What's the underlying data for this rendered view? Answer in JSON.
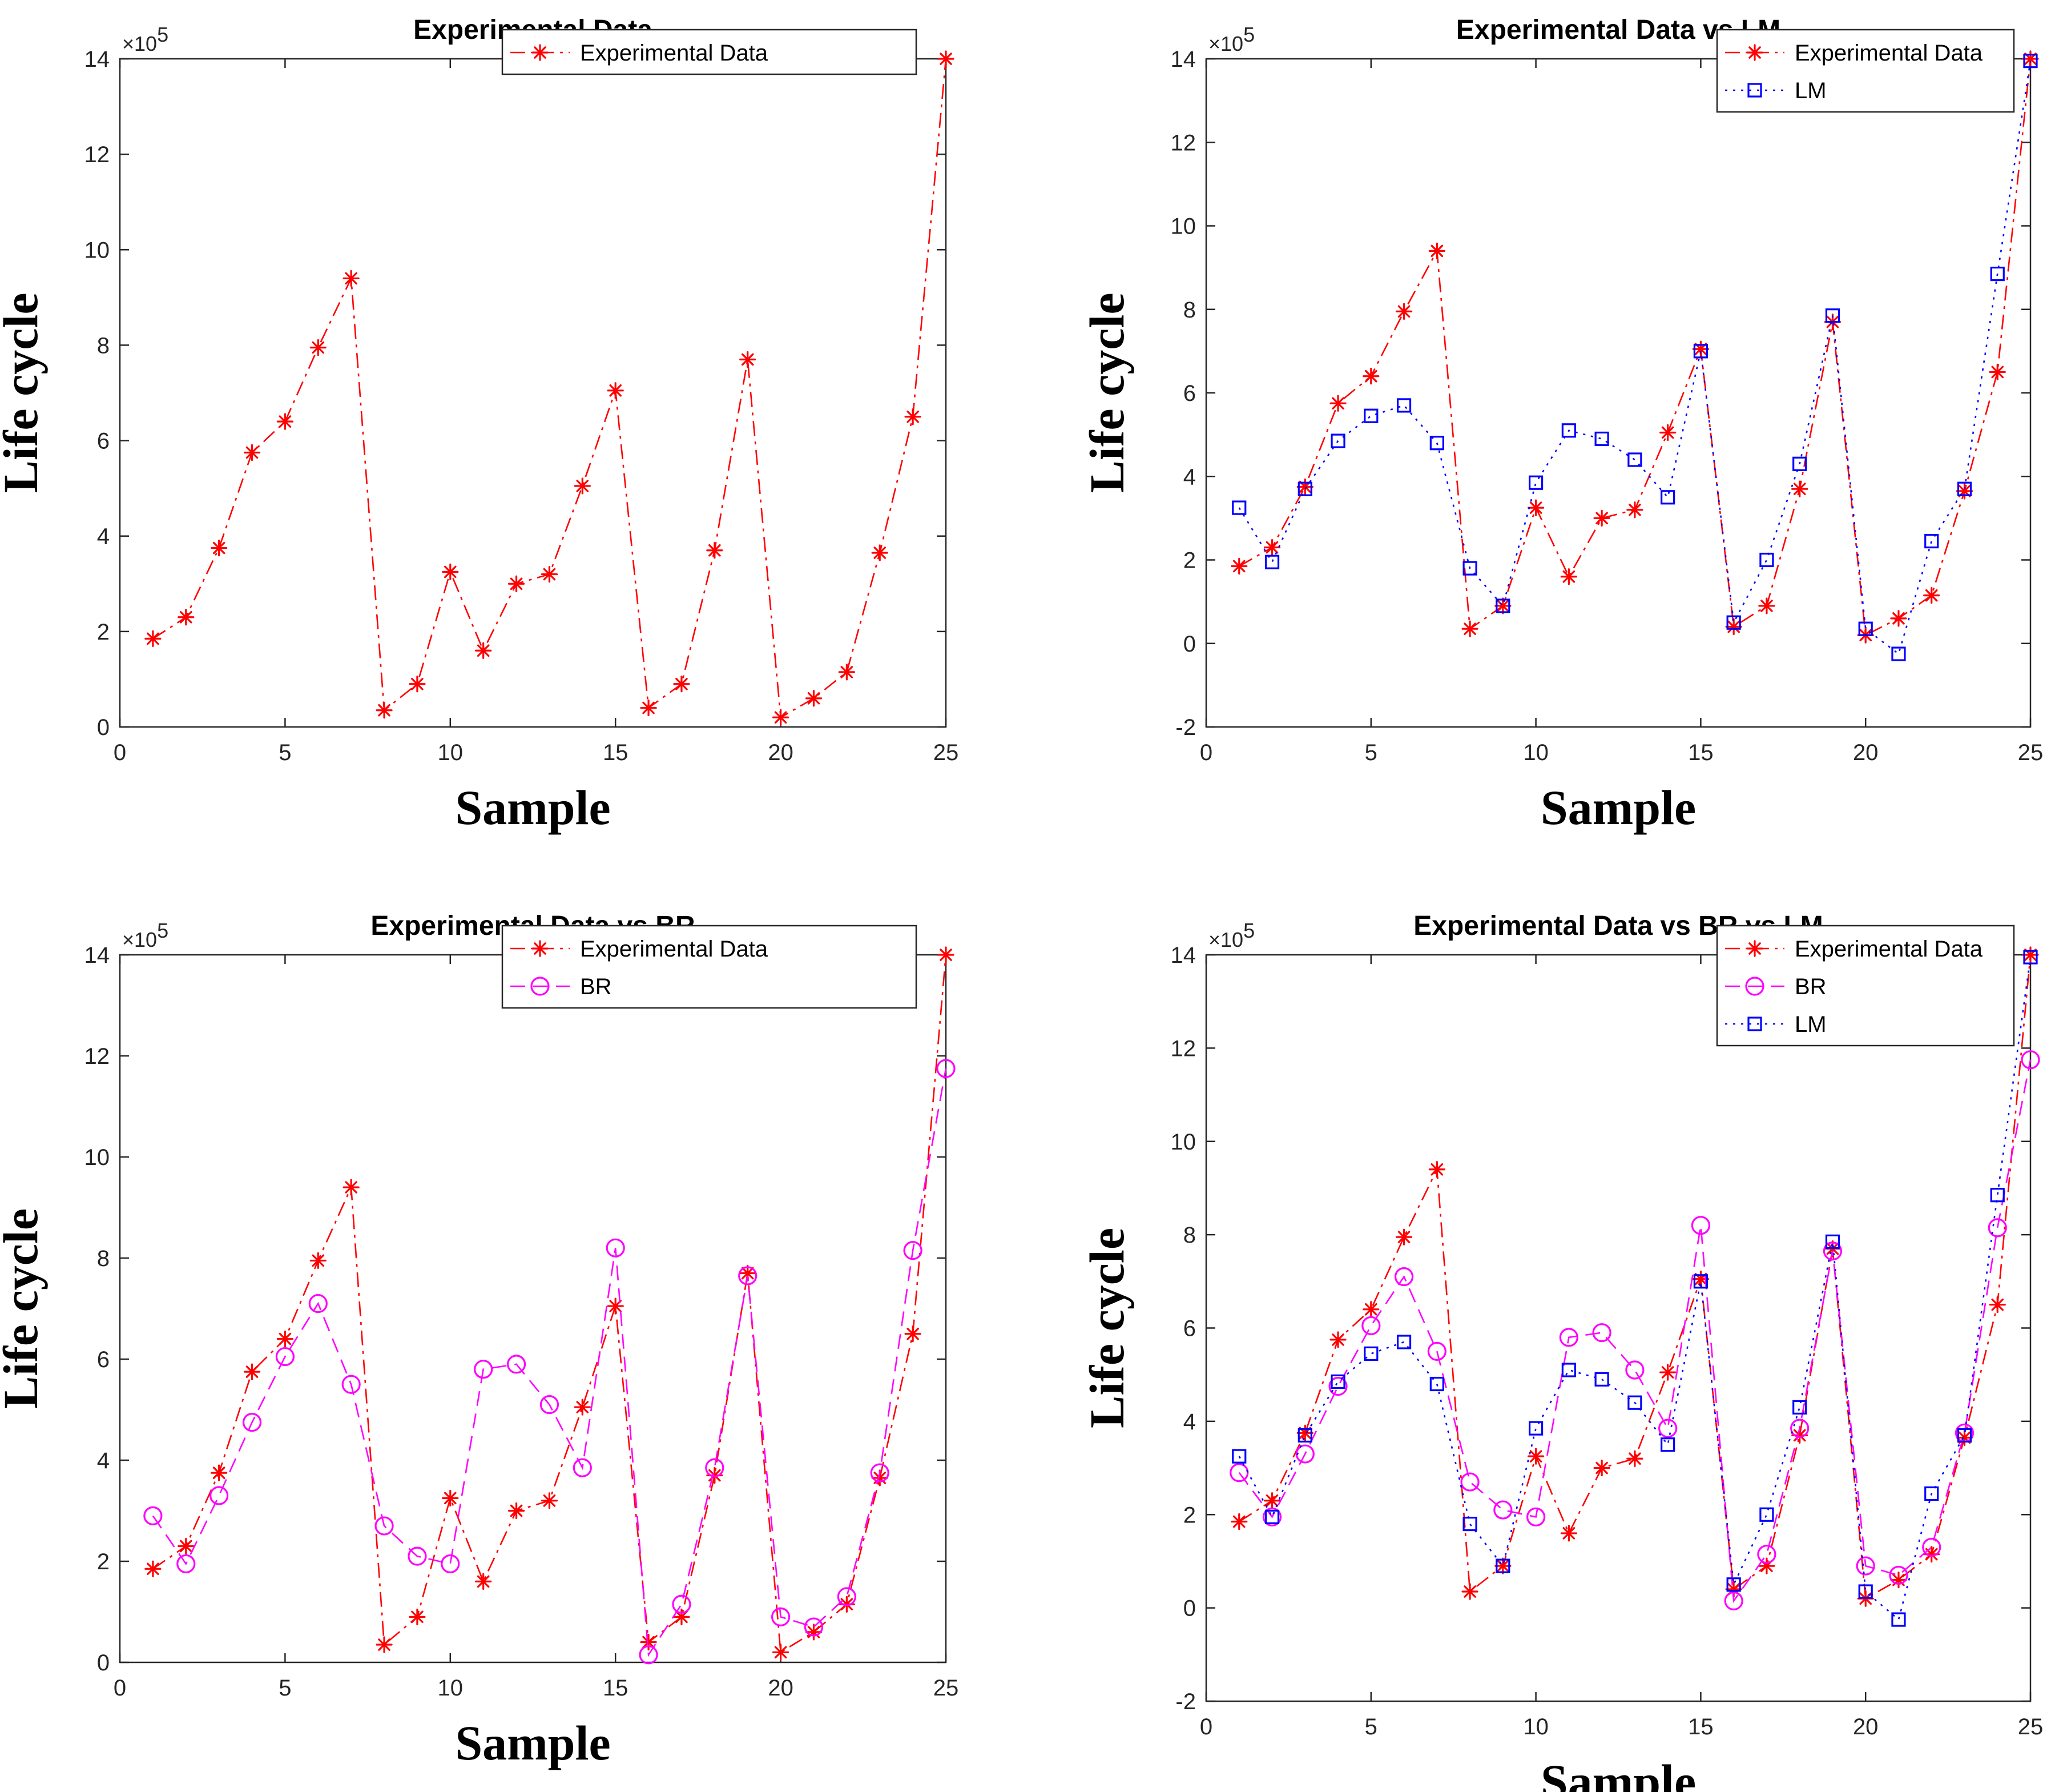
{
  "chart_data": [
    {
      "type": "line",
      "title": "Experimental Data",
      "xlabel": "Sample",
      "ylabel": "Life cycle",
      "y_exponent": "5",
      "y_exponent_base": "×10",
      "xlim": [
        0,
        25
      ],
      "ylim": [
        0,
        14
      ],
      "xticks": [
        0,
        5,
        10,
        15,
        20,
        25
      ],
      "yticks": [
        0,
        2,
        4,
        6,
        8,
        10,
        12,
        14
      ],
      "x": [
        1,
        2,
        3,
        4,
        5,
        6,
        7,
        8,
        9,
        10,
        11,
        12,
        13,
        14,
        15,
        16,
        17,
        18,
        19,
        20,
        21,
        22,
        23,
        24,
        25
      ],
      "series": [
        {
          "name": "Experimental Data",
          "color": "#ff0000",
          "marker": "asterisk",
          "dash": "dashdot",
          "values": [
            1.85,
            2.3,
            3.75,
            5.75,
            6.4,
            7.95,
            9.4,
            0.35,
            0.9,
            3.25,
            1.6,
            3.0,
            3.2,
            5.05,
            7.05,
            0.4,
            0.9,
            3.7,
            7.7,
            0.2,
            0.6,
            1.15,
            3.65,
            6.5,
            14.0
          ]
        }
      ]
    },
    {
      "type": "line",
      "title": "Experimental Data vs LM",
      "xlabel": "Sample",
      "ylabel": "Life cycle",
      "y_exponent": "5",
      "y_exponent_base": "×10",
      "xlim": [
        0,
        25
      ],
      "ylim": [
        -2,
        14
      ],
      "xticks": [
        0,
        5,
        10,
        15,
        20,
        25
      ],
      "yticks": [
        -2,
        0,
        2,
        4,
        6,
        8,
        10,
        12,
        14
      ],
      "x": [
        1,
        2,
        3,
        4,
        5,
        6,
        7,
        8,
        9,
        10,
        11,
        12,
        13,
        14,
        15,
        16,
        17,
        18,
        19,
        20,
        21,
        22,
        23,
        24,
        25
      ],
      "series": [
        {
          "name": "Experimental Data",
          "color": "#ff0000",
          "marker": "asterisk",
          "dash": "dashdot",
          "values": [
            1.85,
            2.3,
            3.75,
            5.75,
            6.4,
            7.95,
            9.4,
            0.35,
            0.9,
            3.25,
            1.6,
            3.0,
            3.2,
            5.05,
            7.05,
            0.4,
            0.9,
            3.7,
            7.7,
            0.2,
            0.6,
            1.15,
            3.65,
            6.5,
            14.0
          ]
        },
        {
          "name": "LM",
          "color": "#0000ff",
          "marker": "square",
          "dash": "dotted",
          "values": [
            3.25,
            1.95,
            3.7,
            4.85,
            5.45,
            5.7,
            4.8,
            1.8,
            0.9,
            3.85,
            5.1,
            4.9,
            4.4,
            3.5,
            7.0,
            0.5,
            2.0,
            4.3,
            7.85,
            0.35,
            -0.25,
            2.45,
            3.7,
            8.85,
            13.95
          ]
        }
      ]
    },
    {
      "type": "line",
      "title": "Experimental Data vs BR",
      "xlabel": "Sample",
      "ylabel": "Life cycle",
      "y_exponent": "5",
      "y_exponent_base": "×10",
      "xlim": [
        0,
        25
      ],
      "ylim": [
        0,
        14
      ],
      "xticks": [
        0,
        5,
        10,
        15,
        20,
        25
      ],
      "yticks": [
        0,
        2,
        4,
        6,
        8,
        10,
        12,
        14
      ],
      "x": [
        1,
        2,
        3,
        4,
        5,
        6,
        7,
        8,
        9,
        10,
        11,
        12,
        13,
        14,
        15,
        16,
        17,
        18,
        19,
        20,
        21,
        22,
        23,
        24,
        25
      ],
      "series": [
        {
          "name": "Experimental Data",
          "color": "#ff0000",
          "marker": "asterisk",
          "dash": "dashdot",
          "values": [
            1.85,
            2.3,
            3.75,
            5.75,
            6.4,
            7.95,
            9.4,
            0.35,
            0.9,
            3.25,
            1.6,
            3.0,
            3.2,
            5.05,
            7.05,
            0.4,
            0.9,
            3.7,
            7.7,
            0.2,
            0.6,
            1.15,
            3.65,
            6.5,
            14.0
          ]
        },
        {
          "name": "BR",
          "color": "#ff00ff",
          "marker": "circle",
          "dash": "dashed",
          "values": [
            2.9,
            1.95,
            3.3,
            4.75,
            6.05,
            7.1,
            5.5,
            2.7,
            2.1,
            1.95,
            5.8,
            5.9,
            5.1,
            3.85,
            8.2,
            0.15,
            1.15,
            3.85,
            7.65,
            0.9,
            0.7,
            1.3,
            3.75,
            8.15,
            11.75
          ]
        }
      ]
    },
    {
      "type": "line",
      "title": "Experimental Data vs BR vs LM",
      "xlabel": "Sample",
      "ylabel": "Life cycle",
      "y_exponent": "5",
      "y_exponent_base": "×10",
      "xlim": [
        0,
        25
      ],
      "ylim": [
        -2,
        14
      ],
      "xticks": [
        0,
        5,
        10,
        15,
        20,
        25
      ],
      "yticks": [
        -2,
        0,
        2,
        4,
        6,
        8,
        10,
        12,
        14
      ],
      "x": [
        1,
        2,
        3,
        4,
        5,
        6,
        7,
        8,
        9,
        10,
        11,
        12,
        13,
        14,
        15,
        16,
        17,
        18,
        19,
        20,
        21,
        22,
        23,
        24,
        25
      ],
      "series": [
        {
          "name": "Experimental Data",
          "color": "#ff0000",
          "marker": "asterisk",
          "dash": "dashdot",
          "values": [
            1.85,
            2.3,
            3.75,
            5.75,
            6.4,
            7.95,
            9.4,
            0.35,
            0.9,
            3.25,
            1.6,
            3.0,
            3.2,
            5.05,
            7.05,
            0.4,
            0.9,
            3.7,
            7.7,
            0.2,
            0.6,
            1.15,
            3.65,
            6.5,
            14.0
          ]
        },
        {
          "name": "BR",
          "color": "#ff00ff",
          "marker": "circle",
          "dash": "dashed",
          "values": [
            2.9,
            1.95,
            3.3,
            4.75,
            6.05,
            7.1,
            5.5,
            2.7,
            2.1,
            1.95,
            5.8,
            5.9,
            5.1,
            3.85,
            8.2,
            0.15,
            1.15,
            3.85,
            7.65,
            0.9,
            0.7,
            1.3,
            3.75,
            8.15,
            11.75
          ]
        },
        {
          "name": "LM",
          "color": "#0000ff",
          "marker": "square",
          "dash": "dotted",
          "values": [
            3.25,
            1.95,
            3.7,
            4.85,
            5.45,
            5.7,
            4.8,
            1.8,
            0.9,
            3.85,
            5.1,
            4.9,
            4.4,
            3.5,
            7.0,
            0.5,
            2.0,
            4.3,
            7.85,
            0.35,
            -0.25,
            2.45,
            3.7,
            8.85,
            13.95
          ]
        }
      ]
    }
  ]
}
